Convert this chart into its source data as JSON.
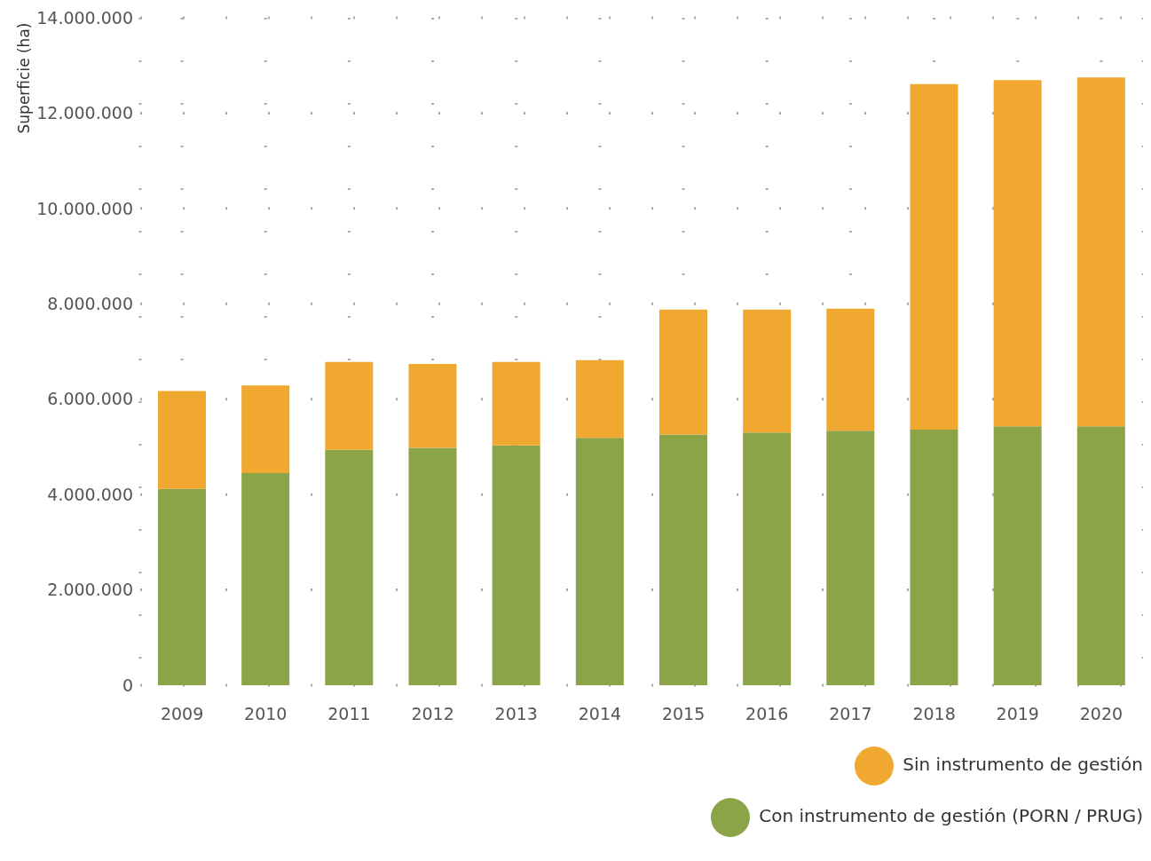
{
  "chart_data": {
    "type": "bar",
    "stacked": true,
    "ylabel": "Superficie (ha)",
    "categories": [
      "2009",
      "2010",
      "2011",
      "2012",
      "2013",
      "2014",
      "2015",
      "2016",
      "2017",
      "2018",
      "2019",
      "2020"
    ],
    "series": [
      {
        "name": "Con instrumento de gestión (PORN / PRUG)",
        "color": "#8aa447",
        "values": [
          4120000,
          4450000,
          4940000,
          4980000,
          5030000,
          5190000,
          5260000,
          5300000,
          5340000,
          5360000,
          5430000,
          5430000
        ]
      },
      {
        "name": "Sin instrumento de gestión",
        "color": "#f0a830",
        "values": [
          2050000,
          1840000,
          1840000,
          1760000,
          1750000,
          1630000,
          2620000,
          2580000,
          2560000,
          7250000,
          7260000,
          7320000
        ]
      }
    ],
    "ylim": [
      0,
      14000000
    ],
    "yticks": [
      {
        "value": 0,
        "label": "0"
      },
      {
        "value": 2000000,
        "label": "2.000.000"
      },
      {
        "value": 4000000,
        "label": "4.000.000"
      },
      {
        "value": 6000000,
        "label": "6.000.000"
      },
      {
        "value": 8000000,
        "label": "8.000.000"
      },
      {
        "value": 10000000,
        "label": "10.000.000"
      },
      {
        "value": 12000000,
        "label": "12.000.000"
      },
      {
        "value": 14000000,
        "label": "14.000.000"
      }
    ],
    "grid": true,
    "legend": "bottom right"
  }
}
